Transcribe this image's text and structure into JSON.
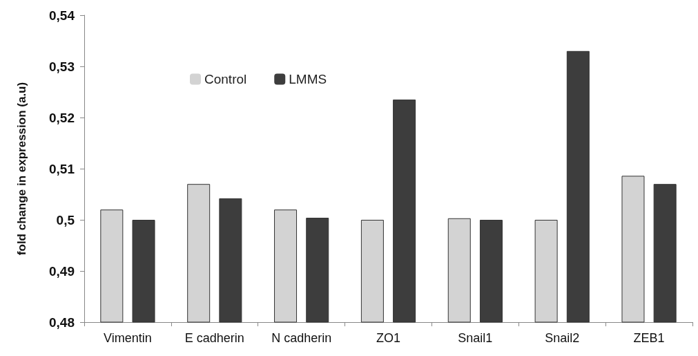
{
  "chart_data": {
    "type": "bar",
    "ylabel": "fold change in expression (a.u)",
    "categories": [
      "Vimentin",
      "E cadherin",
      "N cadherin",
      "ZO1",
      "Snail1",
      "Snail2",
      "ZEB1"
    ],
    "series": [
      {
        "name": "Control",
        "color": "#d3d3d3",
        "values": [
          0.502,
          0.507,
          0.502,
          0.5,
          0.5003,
          0.5,
          0.5086
        ]
      },
      {
        "name": "LMMS",
        "color": "#3d3d3d",
        "values": [
          0.5,
          0.5042,
          0.5004,
          0.5235,
          0.5,
          0.533,
          0.507
        ]
      }
    ],
    "ylim": [
      0.48,
      0.54
    ],
    "yticks": [
      {
        "value": 0.48,
        "label": "0,48"
      },
      {
        "value": 0.49,
        "label": "0,49"
      },
      {
        "value": 0.5,
        "label": "0,5"
      },
      {
        "value": 0.51,
        "label": "0,51"
      },
      {
        "value": 0.52,
        "label": "0,52"
      },
      {
        "value": 0.53,
        "label": "0,53"
      },
      {
        "value": 0.54,
        "label": "0,54"
      }
    ],
    "grid": false,
    "legend": "top"
  }
}
